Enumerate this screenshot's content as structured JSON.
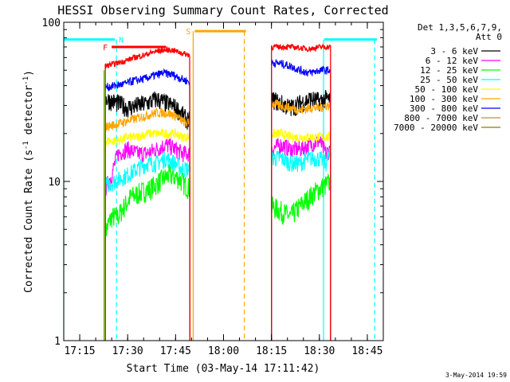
{
  "chart_data": {
    "type": "line",
    "title": "HESSI Observing Summary Count Rates, Corrected",
    "xlabel": "Start Time (03-May-14 17:11:42)",
    "ylabel_main": "Corrected Count Rate (s",
    "ylabel_sup1": "-1",
    "ylabel_mid": " detector",
    "ylabel_sup2": "-1",
    "ylabel_end": ")",
    "yscale": "log",
    "xlim_minutes": [
      1030,
      1130
    ],
    "ylim": [
      1,
      100
    ],
    "x_ticks": [
      {
        "minute": 1035,
        "label": "17:15"
      },
      {
        "minute": 1050,
        "label": "17:30"
      },
      {
        "minute": 1065,
        "label": "17:45"
      },
      {
        "minute": 1080,
        "label": "18:00"
      },
      {
        "minute": 1095,
        "label": "18:15"
      },
      {
        "minute": 1110,
        "label": "18:30"
      },
      {
        "minute": 1125,
        "label": "18:45"
      }
    ],
    "y_ticks": [
      {
        "value": 1,
        "label": "1"
      },
      {
        "value": 10,
        "label": "10"
      },
      {
        "value": 100,
        "label": "100"
      }
    ],
    "legend_title_1": "Det 1,3,5,6,7,9,",
    "legend_title_2": "Att 0",
    "legend_position": "right",
    "series": [
      {
        "name": "3 - 6 keV",
        "color": "#000000",
        "seg1": [
          [
            1043,
            33
          ],
          [
            1047,
            31
          ],
          [
            1050,
            29
          ],
          [
            1053,
            30
          ],
          [
            1056,
            31
          ],
          [
            1059,
            33
          ],
          [
            1062,
            31
          ],
          [
            1064,
            30
          ],
          [
            1066,
            28
          ],
          [
            1068,
            25
          ],
          [
            1069.5,
            24
          ]
        ],
        "seg2": [
          [
            1095,
            33
          ],
          [
            1098,
            31
          ],
          [
            1101,
            29
          ],
          [
            1104,
            31
          ],
          [
            1107,
            33
          ],
          [
            1110,
            32
          ],
          [
            1112,
            33
          ],
          [
            1113.5,
            33
          ]
        ]
      },
      {
        "name": "6 - 12 keV",
        "color": "#ff00ff",
        "seg1": [
          [
            1043,
            9
          ],
          [
            1045,
            11
          ],
          [
            1047,
            15
          ],
          [
            1050,
            16
          ],
          [
            1053,
            15
          ],
          [
            1056,
            15
          ],
          [
            1059,
            16
          ],
          [
            1062,
            17
          ],
          [
            1065,
            16
          ],
          [
            1067,
            15
          ],
          [
            1069.5,
            15
          ]
        ],
        "seg2": [
          [
            1095,
            16
          ],
          [
            1098,
            17
          ],
          [
            1101,
            16
          ],
          [
            1104,
            16
          ],
          [
            1107,
            17
          ],
          [
            1110,
            18
          ],
          [
            1112,
            15
          ],
          [
            1113.5,
            16
          ]
        ]
      },
      {
        "name": "12 - 25 keV",
        "color": "#00ff00",
        "seg1": [
          [
            1043,
            4.8
          ],
          [
            1045,
            6
          ],
          [
            1047,
            6
          ],
          [
            1049,
            7
          ],
          [
            1051,
            8
          ],
          [
            1054,
            8.5
          ],
          [
            1057,
            9
          ],
          [
            1060,
            10
          ],
          [
            1063,
            11
          ],
          [
            1066,
            10.5
          ],
          [
            1068,
            9.5
          ],
          [
            1069.5,
            9
          ]
        ],
        "seg2": [
          [
            1095,
            7
          ],
          [
            1098,
            6.5
          ],
          [
            1101,
            6
          ],
          [
            1104,
            7
          ],
          [
            1107,
            8
          ],
          [
            1110,
            9
          ],
          [
            1112,
            9.5
          ],
          [
            1113.5,
            10
          ]
        ]
      },
      {
        "name": "25 - 50 keV",
        "color": "#00ffff",
        "seg1": [
          [
            1043,
            9.5
          ],
          [
            1046,
            10
          ],
          [
            1050,
            11
          ],
          [
            1053,
            12
          ],
          [
            1056,
            13
          ],
          [
            1059,
            13
          ],
          [
            1062,
            14
          ],
          [
            1065,
            13
          ],
          [
            1067,
            12
          ],
          [
            1069.5,
            12
          ]
        ],
        "seg2": [
          [
            1095,
            14
          ],
          [
            1098,
            14
          ],
          [
            1101,
            13
          ],
          [
            1104,
            13
          ],
          [
            1107,
            14
          ],
          [
            1110,
            14
          ],
          [
            1112,
            13
          ],
          [
            1113.5,
            15
          ]
        ]
      },
      {
        "name": "50 - 100 keV",
        "color": "#ffff00",
        "seg1": [
          [
            1043,
            18
          ],
          [
            1047,
            18
          ],
          [
            1050,
            19
          ],
          [
            1053,
            19
          ],
          [
            1056,
            20
          ],
          [
            1059,
            20
          ],
          [
            1062,
            20
          ],
          [
            1065,
            20
          ],
          [
            1067,
            19
          ],
          [
            1069.5,
            19
          ]
        ],
        "seg2": [
          [
            1095,
            20
          ],
          [
            1098,
            20
          ],
          [
            1101,
            19
          ],
          [
            1104,
            19
          ],
          [
            1107,
            19
          ],
          [
            1110,
            19
          ],
          [
            1112,
            19
          ],
          [
            1113.5,
            19
          ]
        ]
      },
      {
        "name": "100 - 300 keV",
        "color": "#ffa500",
        "seg1": [
          [
            1043,
            22
          ],
          [
            1047,
            23
          ],
          [
            1050,
            24
          ],
          [
            1053,
            25
          ],
          [
            1056,
            26
          ],
          [
            1059,
            27
          ],
          [
            1062,
            27
          ],
          [
            1065,
            26
          ],
          [
            1067,
            24
          ],
          [
            1069.5,
            23
          ]
        ],
        "seg2": [
          [
            1095,
            31
          ],
          [
            1098,
            30
          ],
          [
            1101,
            29
          ],
          [
            1104,
            28
          ],
          [
            1107,
            29
          ],
          [
            1110,
            29
          ],
          [
            1112,
            30
          ],
          [
            1113.5,
            30
          ]
        ]
      },
      {
        "name": "300 - 800 keV",
        "color": "#0000ff",
        "seg1": [
          [
            1043,
            39
          ],
          [
            1046,
            40
          ],
          [
            1049,
            41
          ],
          [
            1052,
            43
          ],
          [
            1055,
            44
          ],
          [
            1058,
            46
          ],
          [
            1061,
            48
          ],
          [
            1064,
            47
          ],
          [
            1067,
            44
          ],
          [
            1069.5,
            42
          ]
        ],
        "seg2": [
          [
            1095,
            56
          ],
          [
            1098,
            55
          ],
          [
            1101,
            53
          ],
          [
            1104,
            50
          ],
          [
            1107,
            48
          ],
          [
            1110,
            50
          ],
          [
            1112,
            50
          ],
          [
            1113.5,
            50
          ]
        ]
      },
      {
        "name": "800 - 7000 keV",
        "color": "#c98b2b",
        "seg1": [],
        "seg2": []
      },
      {
        "name": "7000 - 20000 keV",
        "color": "#808000",
        "seg1": [],
        "seg2": []
      }
    ],
    "red_trace": {
      "color": "#ff0000",
      "seg1": [
        [
          1043,
          53
        ],
        [
          1046,
          55
        ],
        [
          1049,
          57
        ],
        [
          1052,
          60
        ],
        [
          1055,
          62
        ],
        [
          1058,
          65
        ],
        [
          1061,
          67
        ],
        [
          1064,
          67
        ],
        [
          1067,
          64
        ],
        [
          1069.5,
          62
        ]
      ],
      "seg2": [
        [
          1095,
          70
        ],
        [
          1098,
          70
        ],
        [
          1101,
          70
        ],
        [
          1104,
          69
        ],
        [
          1107,
          68
        ],
        [
          1110,
          70
        ],
        [
          1112,
          70
        ],
        [
          1113.5,
          70
        ]
      ]
    },
    "flag_bars": [
      {
        "label": "N",
        "color": "#00ffff",
        "y": 78,
        "from": 1030,
        "to": 1046,
        "label_at": 1048
      },
      {
        "label": "N",
        "color": "#00ffff",
        "y": 78,
        "from": 1111.5,
        "to": 1128
      },
      {
        "label": "F",
        "color": "#ff0000",
        "y": 70,
        "from": 1045,
        "to": 1062,
        "label_at": 1043
      },
      {
        "label": "S",
        "color": "#ffa500",
        "y": 88,
        "from": 1071,
        "to": 1087,
        "label_at": 1069
      }
    ],
    "vlines": [
      {
        "minute": 1030,
        "color": "#00ffff",
        "style": "solid",
        "from": 1,
        "to": 78
      },
      {
        "minute": 1042.6,
        "color": "#00ff00",
        "style": "solid",
        "from": 1,
        "to": 50
      },
      {
        "minute": 1046.5,
        "color": "#00ffff",
        "style": "dashed",
        "from": 1,
        "to": 78
      },
      {
        "minute": 1069.5,
        "color": "#00ff00",
        "style": "solid",
        "from": 1,
        "to": 40
      },
      {
        "minute": 1070.5,
        "color": "#ffa500",
        "style": "solid",
        "from": 1,
        "to": 88
      },
      {
        "minute": 1086.5,
        "color": "#ffa500",
        "style": "dashed",
        "from": 1,
        "to": 88
      },
      {
        "minute": 1111.3,
        "color": "#00ffff",
        "style": "solid",
        "from": 1,
        "to": 78
      },
      {
        "minute": 1127.3,
        "color": "#00ffff",
        "style": "dashed",
        "from": 1,
        "to": 78
      }
    ],
    "footer_date": "3-May-2014 19:59"
  }
}
